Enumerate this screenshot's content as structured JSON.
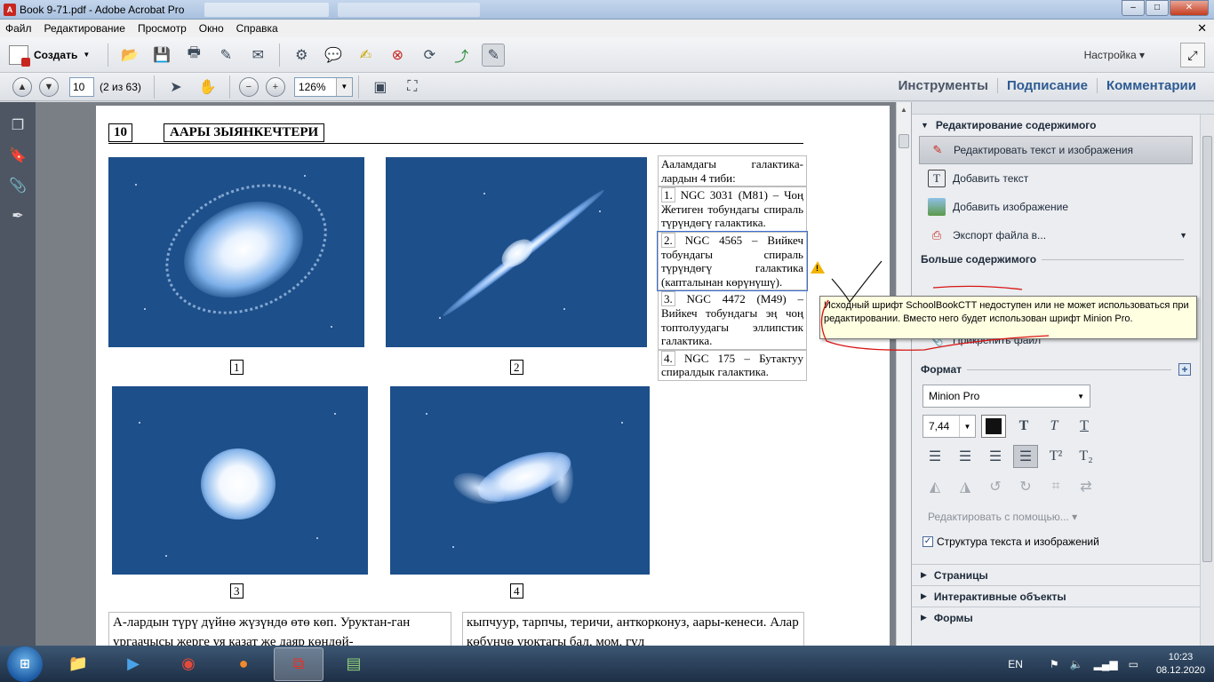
{
  "window": {
    "title": "Book 9-71.pdf - Adobe Acrobat Pro"
  },
  "menu": [
    "Файл",
    "Редактирование",
    "Просмотр",
    "Окно",
    "Справка"
  ],
  "toolbar": {
    "create_label": "Создать",
    "settings_label": "Настройка"
  },
  "nav": {
    "page_value": "10",
    "page_of": "(2 из 63)",
    "zoom_value": "126%"
  },
  "tabs": {
    "tools": "Инструменты",
    "sign": "Подписание",
    "comments": "Комментарии"
  },
  "page": {
    "number": "10",
    "header_title": "ААРЫ ЗЫЯНКЕЧТЕРИ",
    "captions": [
      "1",
      "2",
      "3",
      "4"
    ],
    "side_intro": "Ааламдагы галактика-лардын 4 тиби:",
    "side_items": [
      {
        "n": "1.",
        "text": "NGC 3031 (M81) – Чоң Жетиген тобундагы спираль түрүндөгү галактика."
      },
      {
        "n": "2.",
        "text": "NGC 4565 – Вийкеч тобундагы спираль түрүндөгү галактика (капталынан көрүнүшү)."
      },
      {
        "n": "3.",
        "text": "NGC 4472 (M49) – Вийкеч тобундагы эң чоң топтолуудагы эллипстик галактика."
      },
      {
        "n": "4.",
        "text": "NGC 175 – Бутактуу спиралдык галактика."
      }
    ],
    "bottom_left": "А-лардын түрү дүйнө жүзүндө өтө көп. Уруктан-ган ургаачысы жерге уя казат же даяр көңдөй-",
    "bottom_right": "кыпчуур, тарпчы, теричи, анткорконуз, аары-кенеси. Алар көбүнчө уюктагы бал, мом, гүл"
  },
  "tooltip": "Исходный шрифт SchoolBookCTT недоступен или не может использоваться при редактировании. Вместо него будет использован шрифт Minion Pro.",
  "panel": {
    "section_title": "Редактирование содержимого",
    "items": [
      {
        "label": "Редактировать текст и изображения"
      },
      {
        "label": "Добавить текст"
      },
      {
        "label": "Добавить изображение"
      },
      {
        "label": "Экспорт файла в..."
      }
    ],
    "more_content": "Больше содержимого",
    "attach": "Прикрепить файл",
    "format_title": "Формат",
    "font_name": "Minion Pro",
    "font_size": "7,44",
    "edit_with": "Редактировать с помощью...",
    "structure_label": "Структура текста и изображений",
    "collapsed": [
      "Страницы",
      "Интерактивные объекты",
      "Формы"
    ]
  },
  "taskbar": {
    "lang": "EN",
    "time": "10:23",
    "date": "08.12.2020"
  }
}
